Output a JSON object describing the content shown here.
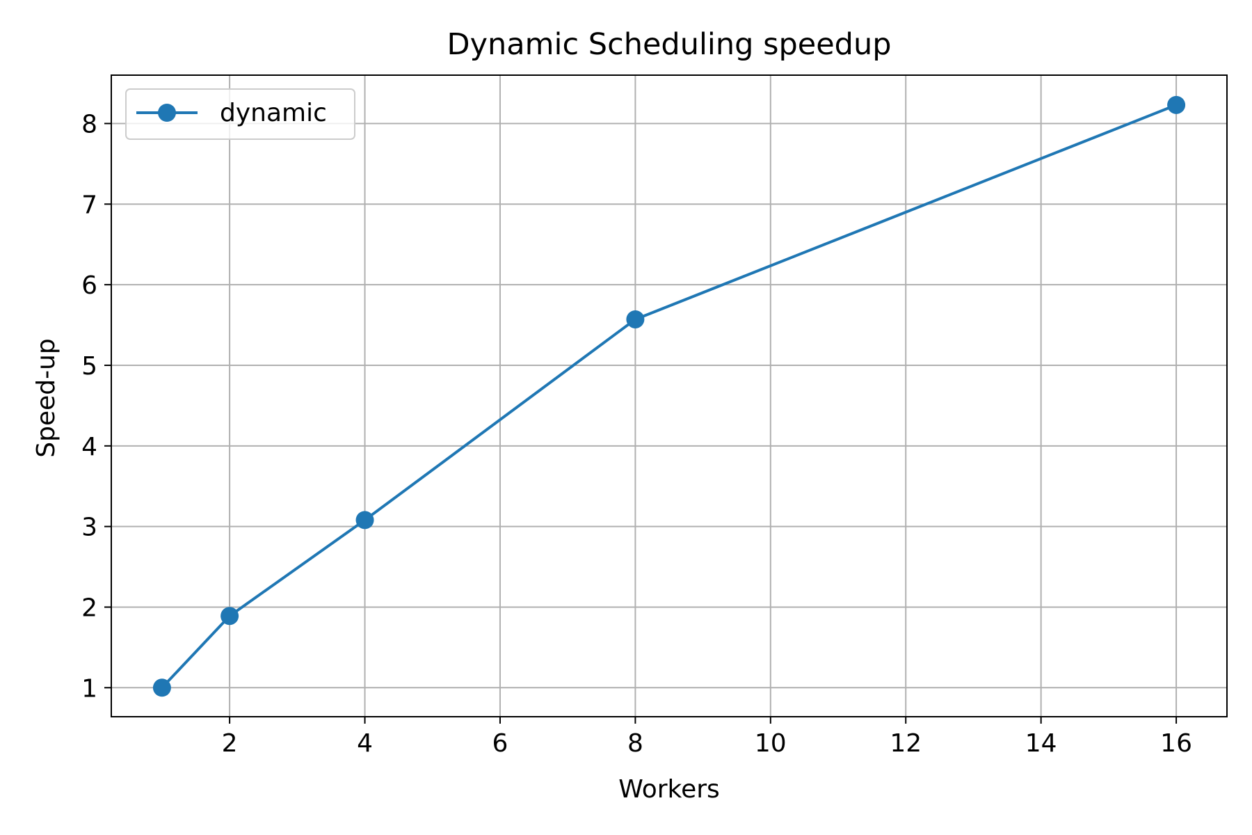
{
  "chart_data": {
    "type": "line",
    "title": "Dynamic Scheduling speedup",
    "xlabel": "Workers",
    "ylabel": "Speed-up",
    "xlim": [
      0.25,
      16.75
    ],
    "ylim": [
      0.64,
      8.6
    ],
    "xticks": [
      2,
      4,
      6,
      8,
      10,
      12,
      14,
      16
    ],
    "yticks": [
      1,
      2,
      3,
      4,
      5,
      6,
      7,
      8
    ],
    "grid": true,
    "legend_position": "top-left",
    "series": [
      {
        "name": "dynamic",
        "color": "#1f77b4",
        "marker": "circle",
        "x": [
          1,
          2,
          4,
          8,
          16
        ],
        "y": [
          1.0,
          1.89,
          3.08,
          5.57,
          8.23
        ]
      }
    ]
  },
  "colors": {
    "grid": "#b0b0b0",
    "axes": "#000000",
    "background": "#ffffff"
  }
}
